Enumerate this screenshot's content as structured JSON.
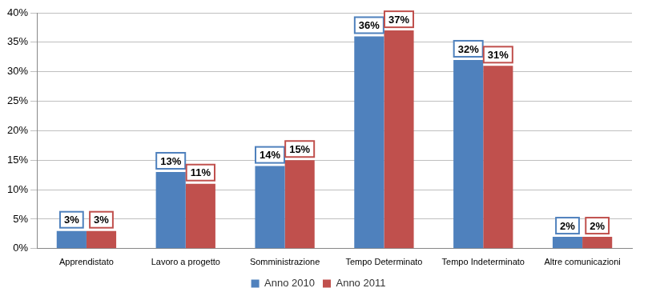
{
  "chart_data": {
    "type": "bar",
    "categories": [
      "Apprendistato",
      "Lavoro a progetto",
      "Somministrazione",
      "Tempo Determinato",
      "Tempo Indeterminato",
      "Altre comunicazioni"
    ],
    "series": [
      {
        "name": "Anno 2010",
        "color": "#4f81bd",
        "values": [
          3,
          13,
          14,
          36,
          32,
          2
        ],
        "value_labels": [
          "3%",
          "13%",
          "14%",
          "36%",
          "32%",
          "2%"
        ]
      },
      {
        "name": "Anno 2011",
        "color": "#c0504d",
        "values": [
          3,
          11,
          15,
          37,
          31,
          2
        ],
        "value_labels": [
          "3%",
          "11%",
          "15%",
          "37%",
          "31%",
          "2%"
        ]
      }
    ],
    "ylim": [
      0,
      40
    ],
    "yticks": [
      {
        "value": 0,
        "label": "0%"
      },
      {
        "value": 5,
        "label": "5%"
      },
      {
        "value": 10,
        "label": "10%"
      },
      {
        "value": 15,
        "label": "15%"
      },
      {
        "value": 20,
        "label": "20%"
      },
      {
        "value": 25,
        "label": "25%"
      },
      {
        "value": 30,
        "label": "30%"
      },
      {
        "value": 35,
        "label": "35%"
      },
      {
        "value": 40,
        "label": "40%"
      }
    ],
    "grid": true,
    "legend": "bottom",
    "data_labels": true
  }
}
